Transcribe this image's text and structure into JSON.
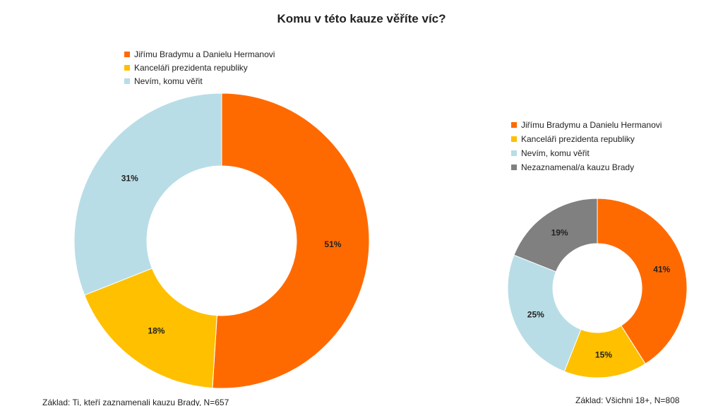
{
  "title": "Komu v této kauze věříte víc?",
  "colors": {
    "orange": "#ff6a00",
    "yellow": "#ffc000",
    "lightblue": "#b8dde6",
    "gray": "#808080"
  },
  "chart_data": [
    {
      "type": "pie",
      "variant": "donut",
      "categories": [
        "Jiřímu Bradymu a Danielu Hermanovi",
        "Kanceláři prezidenta republiky",
        "Nevím, komu věřit"
      ],
      "values": [
        51,
        18,
        31
      ],
      "labels": [
        "51%",
        "18%",
        "31%"
      ],
      "colors": [
        "#ff6a00",
        "#ffc000",
        "#b8dde6"
      ],
      "legend": "top-left",
      "base_note": "Základ: Ti, kteří zaznamenali kauzu Brady, N=657"
    },
    {
      "type": "pie",
      "variant": "donut",
      "categories": [
        "Jiřímu Bradymu a Danielu Hermanovi",
        "Kanceláři prezidenta republiky",
        "Nevím, komu věřit",
        "Nezaznamenal/a kauzu Brady"
      ],
      "values": [
        41,
        15,
        25,
        19
      ],
      "labels": [
        "41%",
        "15%",
        "25%",
        "19%"
      ],
      "colors": [
        "#ff6a00",
        "#ffc000",
        "#b8dde6",
        "#808080"
      ],
      "legend": "top",
      "base_note": "Základ: Všichni 18+, N=808"
    }
  ]
}
